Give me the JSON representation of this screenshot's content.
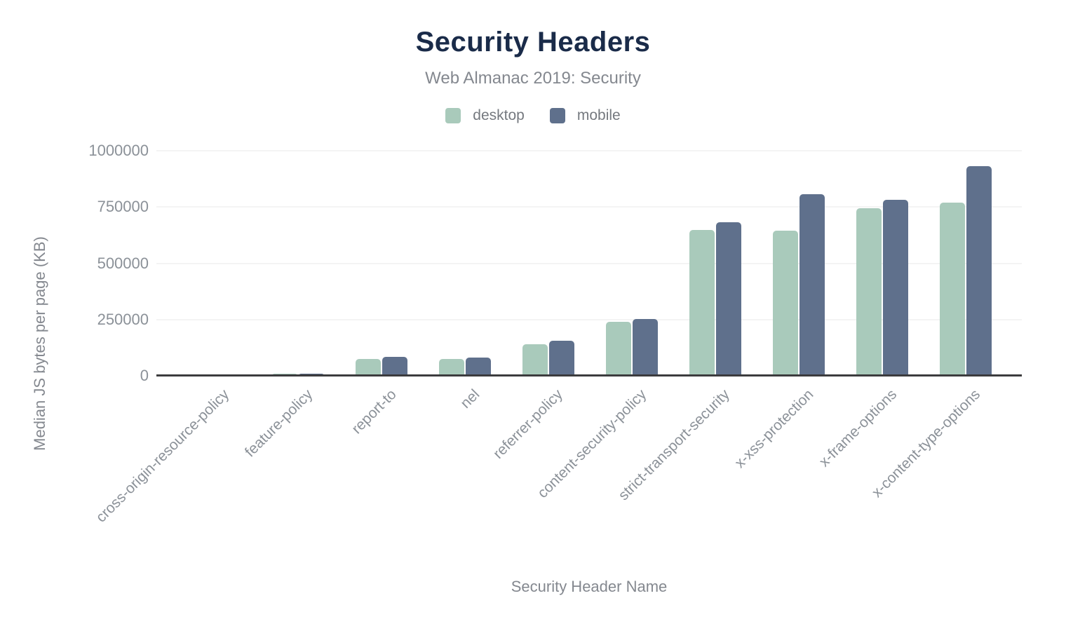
{
  "colors": {
    "title": "#1a2b49",
    "secondary_text": "#84888f",
    "tick_text": "#8b9198",
    "gridline": "#f4f4f4",
    "axis_line": "#3c3c3e",
    "desktop": "#a9cabb",
    "mobile": "#5f708c"
  },
  "chart_data": {
    "type": "bar",
    "title": "Security Headers",
    "subtitle": "Web Almanac 2019: Security",
    "xlabel": "Security Header Name",
    "ylabel": "Median JS bytes per page (KB)",
    "ylim": [
      0,
      1000000
    ],
    "yticks": [
      0,
      250000,
      500000,
      750000,
      1000000
    ],
    "grid": true,
    "legend_position": "top",
    "categories": [
      "cross-origin-resource-policy",
      "feature-policy",
      "report-to",
      "nel",
      "referrer-policy",
      "content-security-policy",
      "strict-transport-security",
      "x-xss-protection",
      "x-frame-options",
      "x-content-type-options"
    ],
    "series": [
      {
        "name": "desktop",
        "color": "#a9cabb",
        "values": [
          0,
          9000,
          75000,
          74000,
          140000,
          239000,
          647000,
          644000,
          744000,
          770000
        ]
      },
      {
        "name": "mobile",
        "color": "#5f708c",
        "values": [
          0,
          8000,
          83000,
          81000,
          157000,
          252000,
          681000,
          806000,
          781000,
          932000
        ]
      }
    ]
  }
}
